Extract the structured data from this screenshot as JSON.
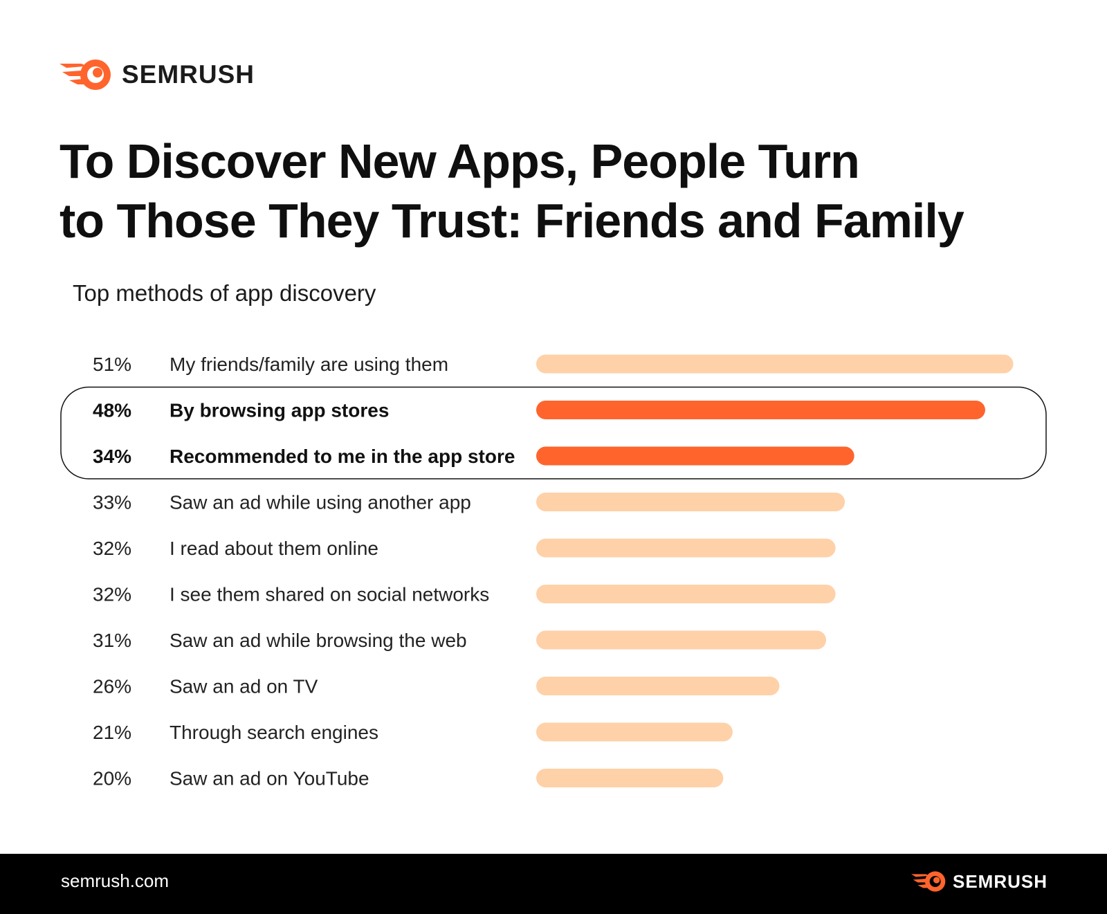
{
  "brand": {
    "name": "SEMRUSH",
    "accent": "#ff642d",
    "light_bar": "#ffd1a8"
  },
  "title_lines": [
    "To Discover New Apps, People Turn",
    "to Those They Trust: Friends and Family"
  ],
  "subtitle": "Top methods of app discovery",
  "chart_data": {
    "type": "bar",
    "orientation": "horizontal",
    "title": "Top methods of app discovery",
    "categories": [
      "My friends/family are using them",
      "By browsing app stores",
      "Recommended to me in the app store",
      "Saw an ad while using another app",
      "I read about them online",
      "I see them shared on social networks",
      "Saw an ad while browsing the web",
      "Saw an ad on TV",
      "Through search engines",
      "Saw an ad on YouTube"
    ],
    "values": [
      51,
      48,
      34,
      33,
      32,
      32,
      31,
      26,
      21,
      20
    ],
    "value_labels": [
      "51%",
      "48%",
      "34%",
      "33%",
      "32%",
      "32%",
      "31%",
      "26%",
      "21%",
      "20%"
    ],
    "highlighted": [
      1,
      2
    ],
    "unit": "%",
    "grid": false,
    "legend": false
  },
  "footer": {
    "url": "semrush.com",
    "brand": "SEMRUSH"
  }
}
